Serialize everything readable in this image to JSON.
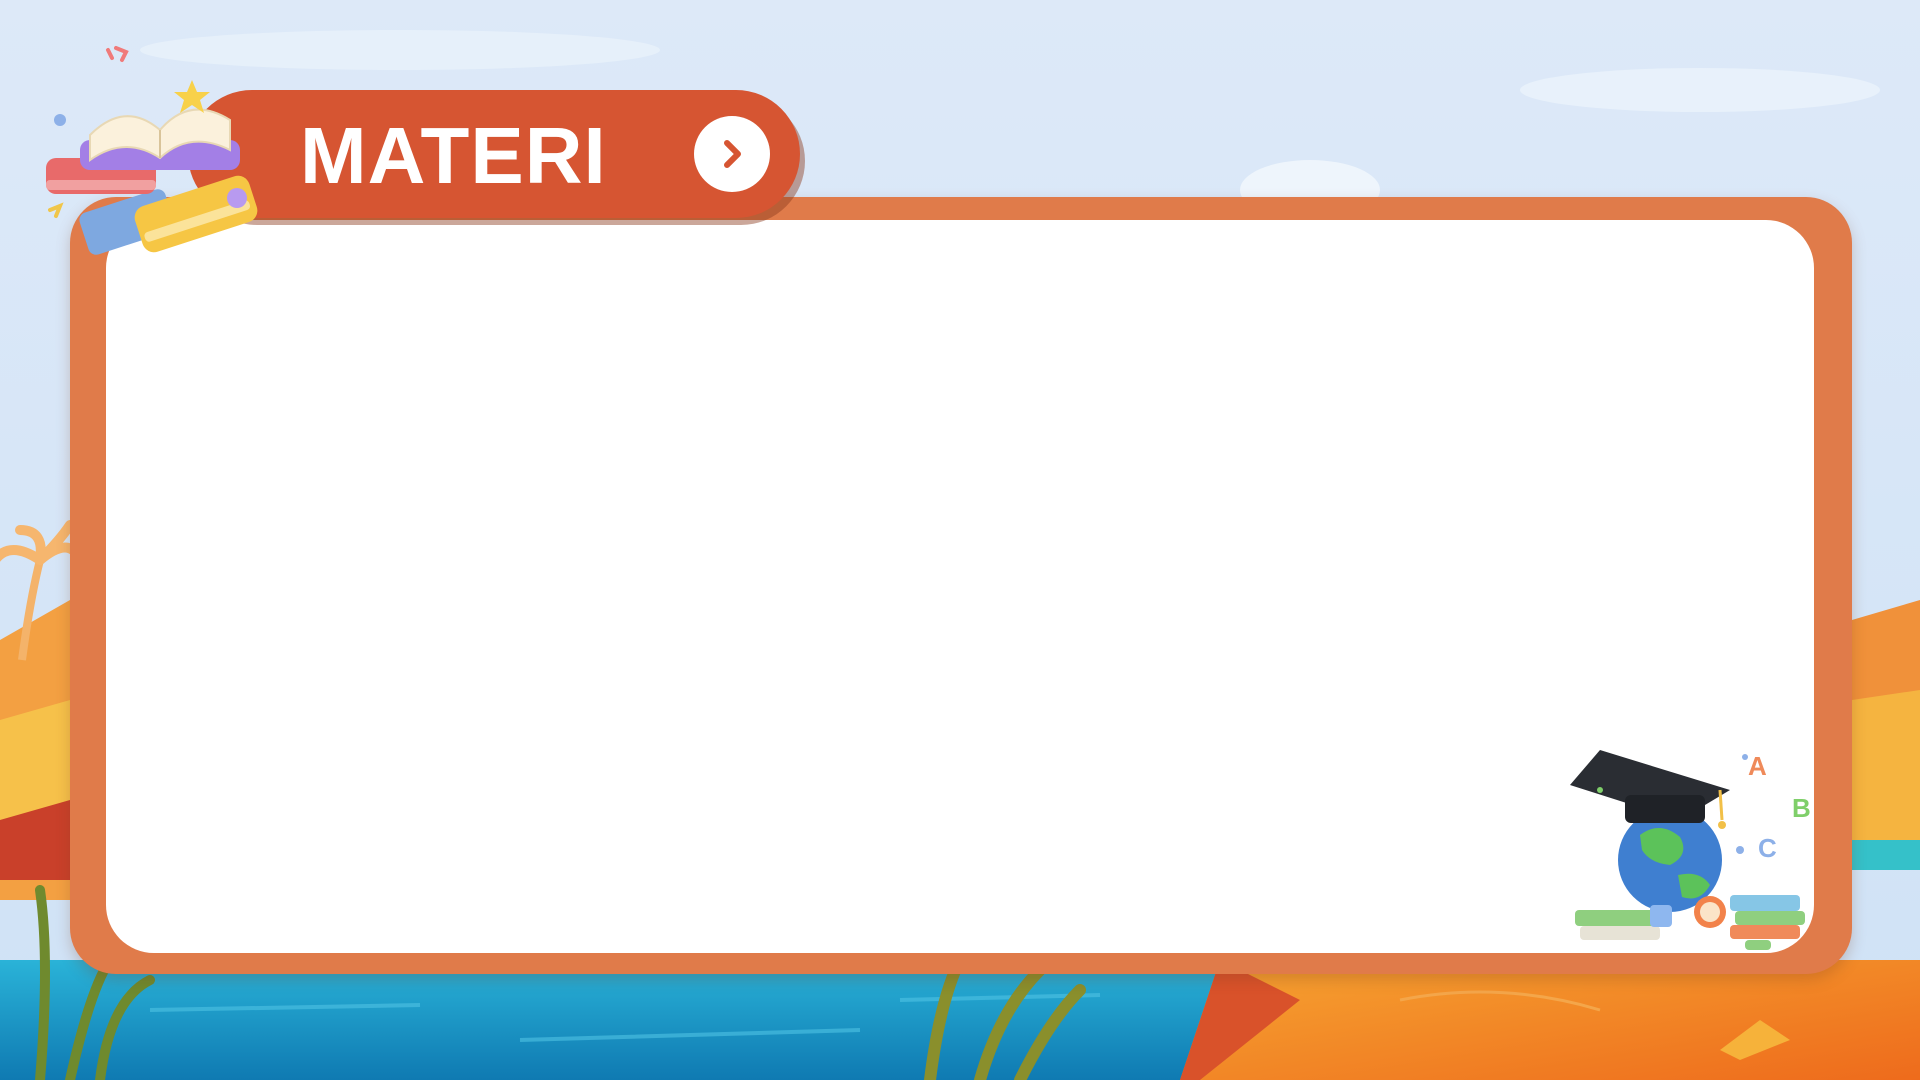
{
  "slide": {
    "title": "MATERI",
    "next_icon": "chevron-right-icon"
  },
  "decor": {
    "books_icon": "stacked-books-icon",
    "grad_icon": "globe-graduation-cap-icon",
    "letters": [
      "A",
      "B",
      "C"
    ]
  },
  "colors": {
    "frame": "#e07b4a",
    "tab": "#d65532",
    "sky": "#dbe9f7",
    "water": "#1b8fc4",
    "sand": "#f08a24"
  }
}
